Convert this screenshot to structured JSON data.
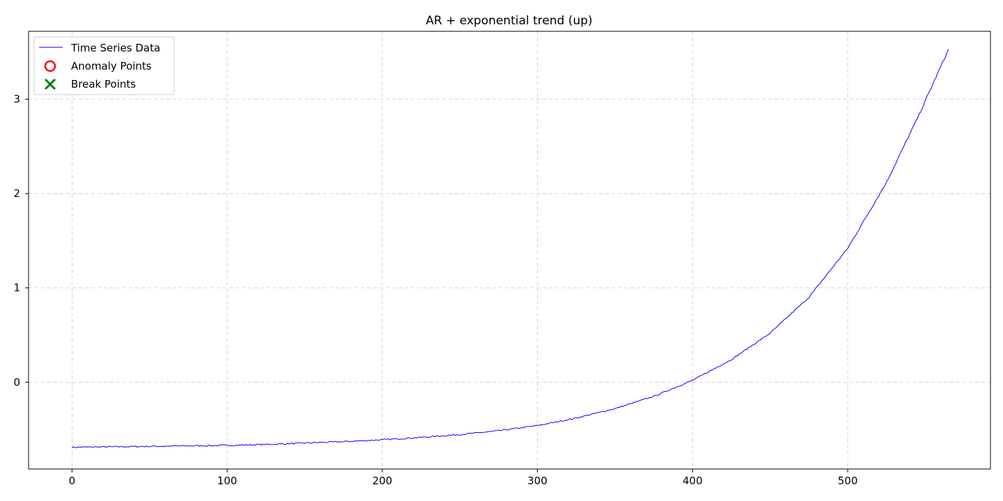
{
  "chart_data": {
    "type": "line",
    "title": "AR + exponential trend (up)",
    "xlabel": "",
    "ylabel": "",
    "xlim": [
      -28,
      592
    ],
    "ylim": [
      -0.92,
      3.72
    ],
    "x_ticks": [
      0,
      100,
      200,
      300,
      400,
      500
    ],
    "x_tick_labels": [
      "0",
      "100",
      "200",
      "300",
      "400",
      "500"
    ],
    "y_ticks": [
      0,
      1,
      2,
      3
    ],
    "y_tick_labels": [
      "0",
      "1",
      "2",
      "3"
    ],
    "grid": true,
    "legend_position": "top-left",
    "legend": [
      "Time Series Data",
      "Anomaly Points",
      "Break Points"
    ],
    "series": [
      {
        "name": "Time Series Data",
        "color": "#0000ff",
        "x": [
          0,
          25,
          50,
          75,
          100,
          125,
          150,
          175,
          200,
          225,
          250,
          275,
          300,
          325,
          350,
          375,
          400,
          425,
          450,
          475,
          500,
          525,
          545,
          565
        ],
        "y": [
          -0.69,
          -0.685,
          -0.68,
          -0.675,
          -0.67,
          -0.66,
          -0.645,
          -0.63,
          -0.61,
          -0.585,
          -0.555,
          -0.515,
          -0.46,
          -0.38,
          -0.28,
          -0.15,
          0.02,
          0.24,
          0.52,
          0.9,
          1.42,
          2.12,
          2.8,
          3.53
        ]
      }
    ],
    "anomaly_points": {
      "name": "Anomaly Points",
      "color": "#ff0000",
      "marker": "circle",
      "x": [],
      "y": []
    },
    "break_points": {
      "name": "Break Points",
      "color": "#008000",
      "marker": "x",
      "x": [],
      "y": []
    }
  }
}
